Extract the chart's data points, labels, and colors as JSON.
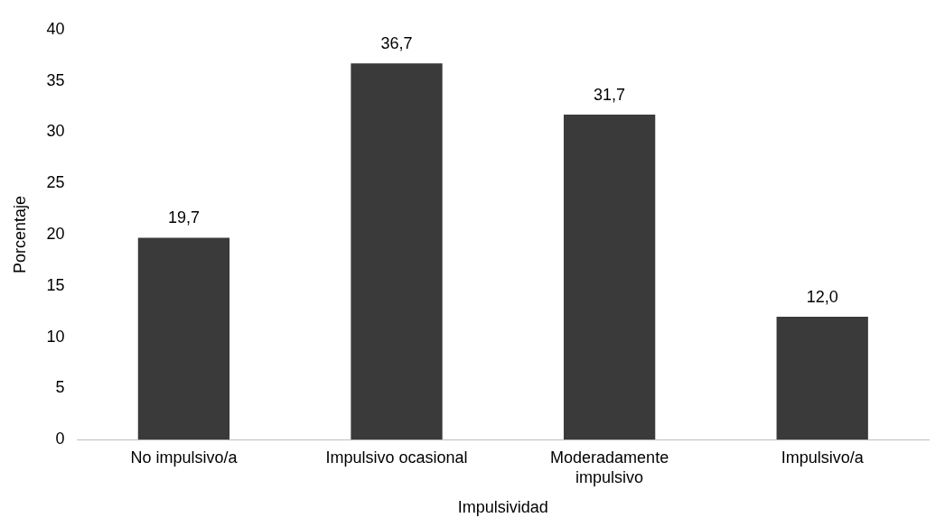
{
  "chart_data": {
    "type": "bar",
    "xlabel": "Impulsividad",
    "ylabel": "Porcentaje",
    "categories": [
      "No impulsivo/a",
      "Impulsivo ocasional",
      "Moderadamente impulsivo",
      "Impulsivo/a"
    ],
    "values": [
      19.7,
      36.7,
      31.7,
      12.0
    ],
    "value_labels": [
      "19,7",
      "36,7",
      "31,7",
      "12,0"
    ],
    "color": "#3a3a3a",
    "ylim": [
      0,
      40
    ],
    "yticks": [
      0,
      5,
      10,
      15,
      20,
      25,
      30,
      35,
      40
    ],
    "grid": false,
    "legend": false
  }
}
